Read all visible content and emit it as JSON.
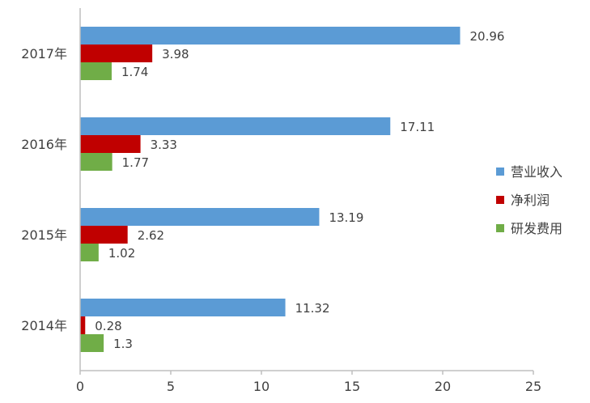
{
  "chart_data": {
    "type": "bar",
    "orientation": "horizontal",
    "categories": [
      "2014年",
      "2015年",
      "2016年",
      "2017年"
    ],
    "series": [
      {
        "name": "营业收入",
        "values": [
          11.32,
          13.19,
          17.11,
          20.96
        ],
        "labels": [
          "11.32",
          "13.19",
          "17.11",
          "20.96"
        ],
        "color": "#5B9BD5"
      },
      {
        "name": "净利润",
        "values": [
          0.28,
          2.62,
          3.33,
          3.98
        ],
        "labels": [
          "0.28",
          "2.62",
          "3.33",
          "3.98"
        ],
        "color": "#C00000"
      },
      {
        "name": "研发费用",
        "values": [
          1.3,
          1.02,
          1.77,
          1.74
        ],
        "labels": [
          "1.3",
          "1.02",
          "1.77",
          "1.74"
        ],
        "color": "#70AD47"
      }
    ],
    "xlim": [
      0,
      25
    ],
    "xticks": [
      "0",
      "5",
      "10",
      "15",
      "20",
      "25"
    ],
    "grid": false,
    "legend_position": "right"
  }
}
